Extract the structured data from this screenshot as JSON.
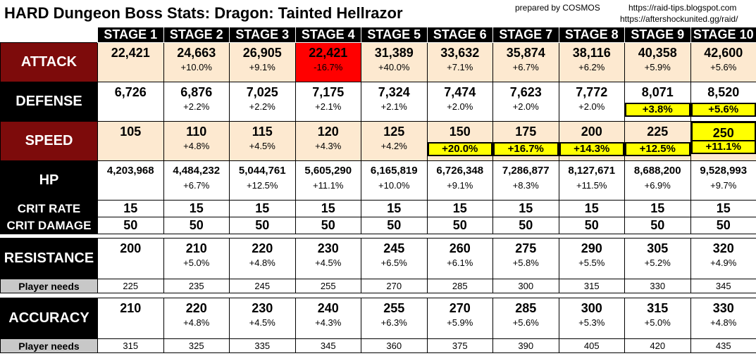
{
  "title": "HARD Dungeon Boss Stats: Dragon: Tainted Hellrazor",
  "prepared_by": "prepared by COSMOS",
  "links": [
    "https://raid-tips.blogspot.com",
    "https://aftershockunited.gg/raid/"
  ],
  "stages": [
    "STAGE 1",
    "STAGE 2",
    "STAGE 3",
    "STAGE 4",
    "STAGE 5",
    "STAGE 6",
    "STAGE 7",
    "STAGE 8",
    "STAGE 9",
    "STAGE 10"
  ],
  "attack": {
    "label": "ATTACK",
    "values": [
      "22,421",
      "24,663",
      "26,905",
      "22,421",
      "31,389",
      "33,632",
      "35,874",
      "38,116",
      "40,358",
      "42,600"
    ],
    "changes": [
      "",
      "+10.0%",
      "+9.1%",
      "-16.7%",
      "+40.0%",
      "+7.1%",
      "+6.7%",
      "+6.2%",
      "+5.9%",
      "+5.6%"
    ]
  },
  "defense": {
    "label": "DEFENSE",
    "values": [
      "6,726",
      "6,876",
      "7,025",
      "7,175",
      "7,324",
      "7,474",
      "7,623",
      "7,772",
      "8,071",
      "8,520"
    ],
    "changes": [
      "",
      "+2.2%",
      "+2.2%",
      "+2.1%",
      "+2.1%",
      "+2.0%",
      "+2.0%",
      "+2.0%",
      "+3.8%",
      "+5.6%"
    ]
  },
  "speed": {
    "label": "SPEED",
    "values": [
      "105",
      "110",
      "115",
      "120",
      "125",
      "150",
      "175",
      "200",
      "225",
      "250"
    ],
    "changes": [
      "",
      "+4.8%",
      "+4.5%",
      "+4.3%",
      "+4.2%",
      "+20.0%",
      "+16.7%",
      "+14.3%",
      "+12.5%",
      "+11.1%"
    ]
  },
  "hp": {
    "label": "HP",
    "values": [
      "4,203,968",
      "4,484,232",
      "5,044,761",
      "5,605,290",
      "6,165,819",
      "6,726,348",
      "7,286,877",
      "8,127,671",
      "8,688,200",
      "9,528,993"
    ],
    "changes": [
      "",
      "+6.7%",
      "+12.5%",
      "+11.1%",
      "+10.0%",
      "+9.1%",
      "+8.3%",
      "+11.5%",
      "+6.9%",
      "+9.7%"
    ]
  },
  "crit_rate": {
    "label": "CRIT RATE",
    "values": [
      "15",
      "15",
      "15",
      "15",
      "15",
      "15",
      "15",
      "15",
      "15",
      "15"
    ]
  },
  "crit_damage": {
    "label": "CRIT DAMAGE",
    "values": [
      "50",
      "50",
      "50",
      "50",
      "50",
      "50",
      "50",
      "50",
      "50",
      "50"
    ]
  },
  "resistance": {
    "label": "RESISTANCE",
    "values": [
      "200",
      "210",
      "220",
      "230",
      "245",
      "260",
      "275",
      "290",
      "305",
      "320"
    ],
    "changes": [
      "",
      "+5.0%",
      "+4.8%",
      "+4.5%",
      "+6.5%",
      "+6.1%",
      "+5.8%",
      "+5.5%",
      "+5.2%",
      "+4.9%"
    ],
    "needs_label": "Player needs",
    "needs": [
      "225",
      "235",
      "245",
      "255",
      "270",
      "285",
      "300",
      "315",
      "330",
      "345"
    ]
  },
  "accuracy": {
    "label": "ACCURACY",
    "values": [
      "210",
      "220",
      "230",
      "240",
      "255",
      "270",
      "285",
      "300",
      "315",
      "330"
    ],
    "changes": [
      "",
      "+4.8%",
      "+4.5%",
      "+4.3%",
      "+6.3%",
      "+5.9%",
      "+5.6%",
      "+5.3%",
      "+5.0%",
      "+4.8%"
    ],
    "needs_label": "Player needs",
    "needs": [
      "315",
      "325",
      "335",
      "345",
      "360",
      "375",
      "390",
      "405",
      "420",
      "435"
    ]
  },
  "colors": {
    "dark_red": "#7d0b0b",
    "cream": "#fde9d0",
    "highlight_red": "#ff0000",
    "highlight_yellow": "#ffff00"
  }
}
